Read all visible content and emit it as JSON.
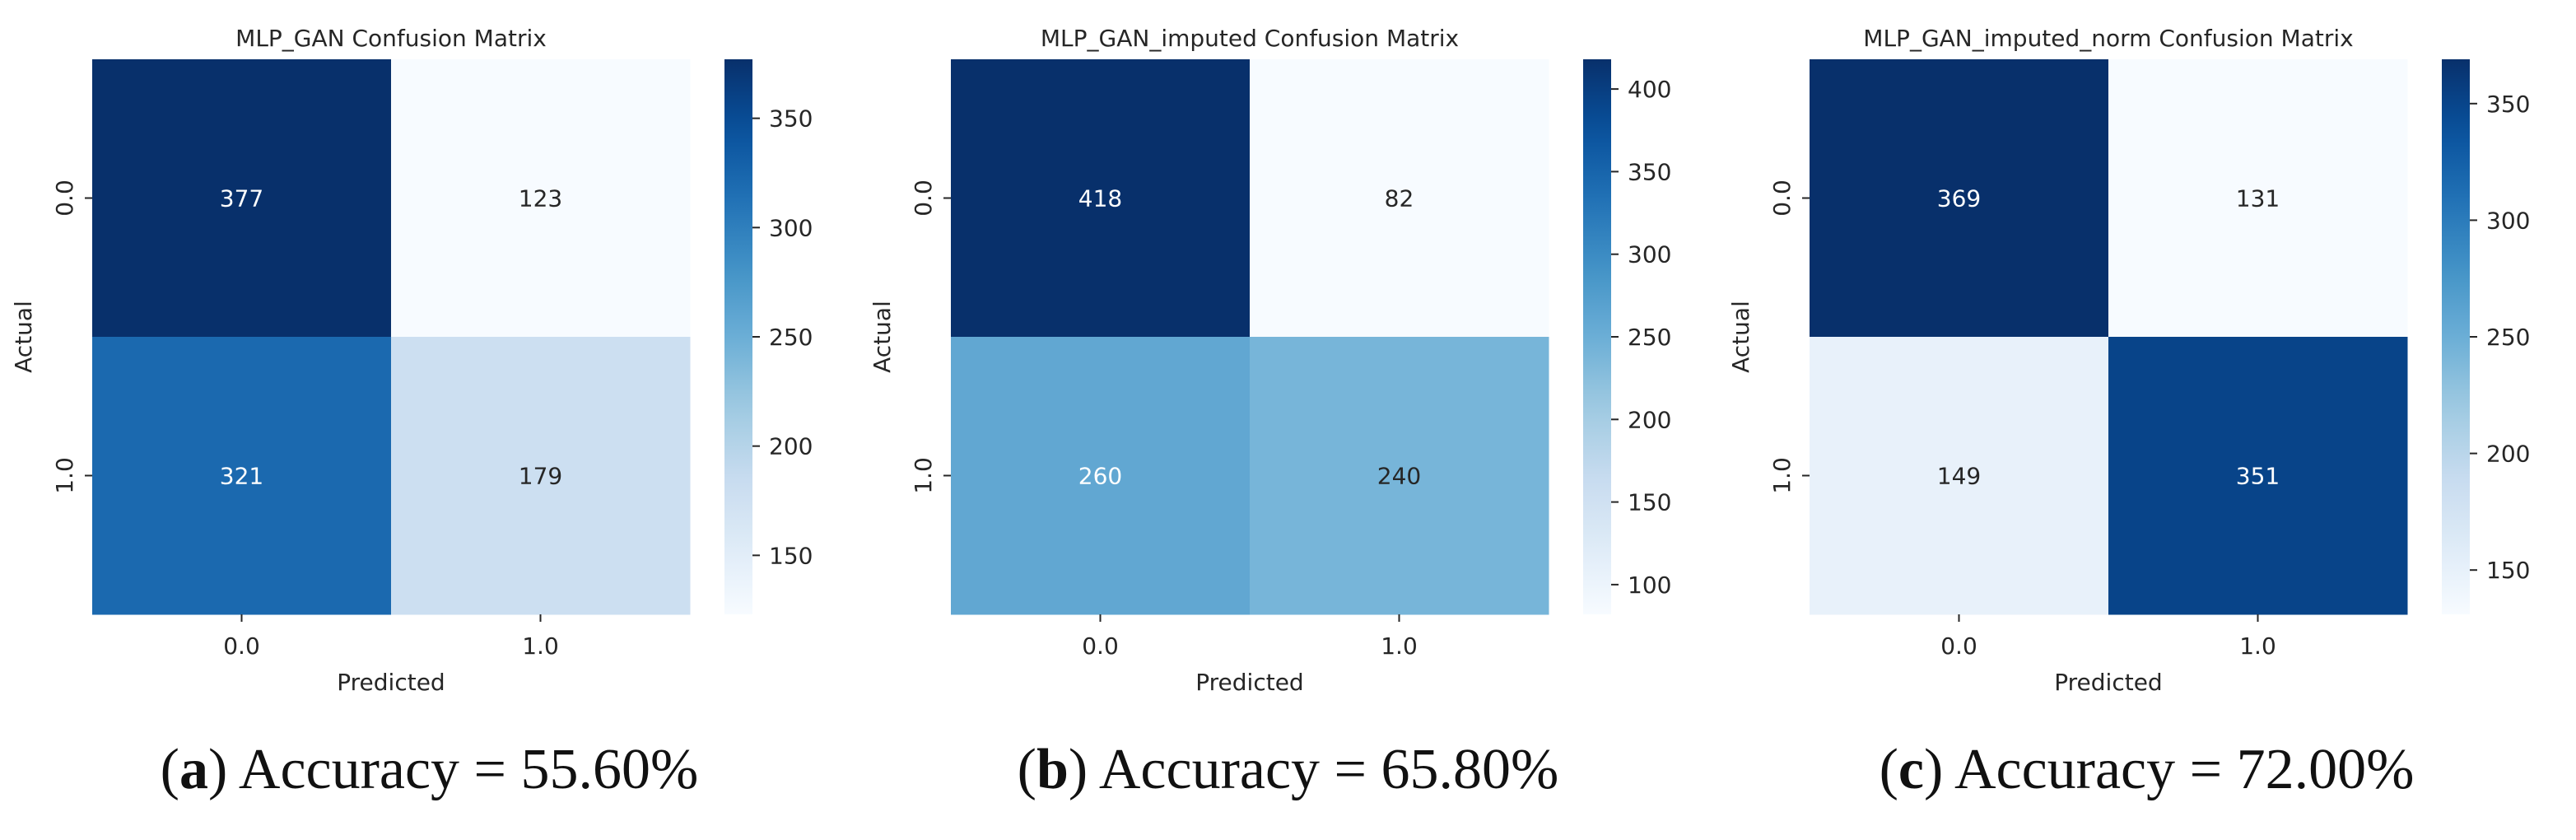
{
  "chart_data": [
    {
      "type": "heatmap",
      "title": "MLP_GAN  Confusion Matrix",
      "xlabel": "Predicted",
      "ylabel": "Actual",
      "x_categories": [
        "0.0",
        "1.0"
      ],
      "y_categories": [
        "0.0",
        "1.0"
      ],
      "values": [
        [
          377,
          123
        ],
        [
          321,
          179
        ]
      ],
      "colormap": "Blues",
      "colorbar_ticks": [
        150,
        200,
        250,
        300,
        350
      ],
      "colorbar_range": [
        123,
        377
      ],
      "caption_letter": "a",
      "caption_text": "Accuracy = 55.60%"
    },
    {
      "type": "heatmap",
      "title": "MLP_GAN_imputed  Confusion Matrix",
      "xlabel": "Predicted",
      "ylabel": "Actual",
      "x_categories": [
        "0.0",
        "1.0"
      ],
      "y_categories": [
        "0.0",
        "1.0"
      ],
      "values": [
        [
          418,
          82
        ],
        [
          260,
          240
        ]
      ],
      "colormap": "Blues",
      "colorbar_ticks": [
        100,
        150,
        200,
        250,
        300,
        350,
        400
      ],
      "colorbar_range": [
        82,
        418
      ],
      "caption_letter": "b",
      "caption_text": "Accuracy = 65.80%"
    },
    {
      "type": "heatmap",
      "title": "MLP_GAN_imputed_norm  Confusion Matrix",
      "xlabel": "Predicted",
      "ylabel": "Actual",
      "x_categories": [
        "0.0",
        "1.0"
      ],
      "y_categories": [
        "0.0",
        "1.0"
      ],
      "values": [
        [
          369,
          131
        ],
        [
          149,
          351
        ]
      ],
      "colormap": "Blues",
      "colorbar_ticks": [
        150,
        200,
        250,
        300,
        350
      ],
      "colorbar_range": [
        131,
        369
      ],
      "caption_letter": "c",
      "caption_text": "Accuracy = 72.00%"
    }
  ]
}
